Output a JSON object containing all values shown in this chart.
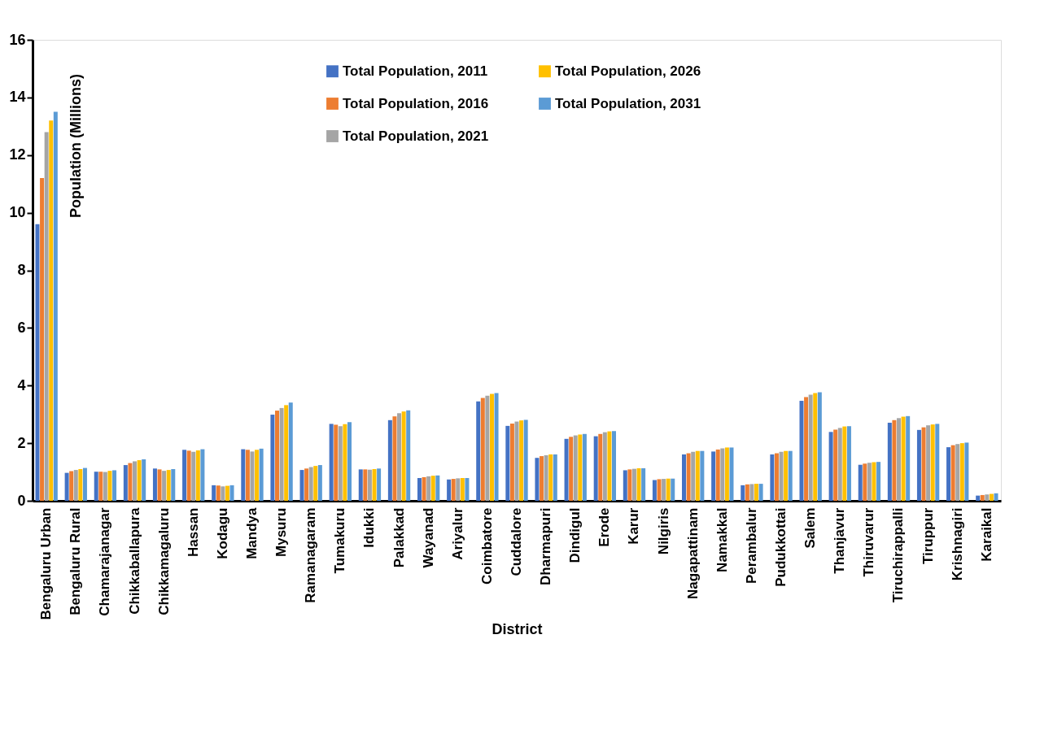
{
  "chart_data": {
    "type": "bar",
    "xlabel": "District",
    "ylabel": "Population (Millions)",
    "categories": [
      "Bengaluru Urban",
      "Bengaluru Rural",
      "Chamarajanagar",
      "Chikkaballapura",
      "Chikkamagaluru",
      "Hassan",
      "Kodagu",
      "Mandya",
      "Mysuru",
      "Ramanagaram",
      "Tumakuru",
      "Idukki",
      "Palakkad",
      "Wayanad",
      "Ariyalur",
      "Coimbatore",
      "Cuddalore",
      "Dharmapuri",
      "Dindigul",
      "Erode",
      "Karur",
      "Nilgiris",
      "Nagapattinam",
      "Namakkal",
      "Perambalur",
      "Pudukkottai",
      "Salem",
      "Thanjavur",
      "Thiruvarur",
      "Tiruchirappalli",
      "Tiruppur",
      "Krishnagiri",
      "Karaikal"
    ],
    "series": [
      {
        "name": "Total Population, 2011",
        "color": "#4472c4",
        "values": [
          9.6,
          0.97,
          1.01,
          1.24,
          1.12,
          1.77,
          0.54,
          1.79,
          2.99,
          1.07,
          2.67,
          1.09,
          2.8,
          0.79,
          0.74,
          3.45,
          2.6,
          1.49,
          2.15,
          2.24,
          1.06,
          0.72,
          1.61,
          1.71,
          0.54,
          1.61,
          3.47,
          2.39,
          1.25,
          2.71,
          2.46,
          1.86,
          0.18
        ]
      },
      {
        "name": "Total Population, 2016",
        "color": "#ed7d31",
        "values": [
          11.2,
          1.03,
          1.01,
          1.31,
          1.09,
          1.74,
          0.53,
          1.77,
          3.13,
          1.12,
          2.64,
          1.09,
          2.93,
          0.82,
          0.76,
          3.57,
          2.68,
          1.55,
          2.22,
          2.32,
          1.09,
          0.75,
          1.65,
          1.78,
          0.57,
          1.65,
          3.6,
          2.47,
          1.29,
          2.8,
          2.55,
          1.93,
          0.2
        ]
      },
      {
        "name": "Total Population, 2021",
        "color": "#a5a5a5",
        "values": [
          12.8,
          1.07,
          1.0,
          1.37,
          1.04,
          1.7,
          0.5,
          1.71,
          3.22,
          1.17,
          2.59,
          1.08,
          3.04,
          0.85,
          0.78,
          3.65,
          2.75,
          1.58,
          2.27,
          2.38,
          1.11,
          0.76,
          1.7,
          1.82,
          0.58,
          1.7,
          3.68,
          2.53,
          1.32,
          2.87,
          2.62,
          1.97,
          0.22
        ]
      },
      {
        "name": "Total Population, 2026",
        "color": "#ffc000",
        "values": [
          13.2,
          1.1,
          1.04,
          1.41,
          1.07,
          1.75,
          0.52,
          1.77,
          3.32,
          1.21,
          2.66,
          1.1,
          3.1,
          0.87,
          0.79,
          3.71,
          2.79,
          1.61,
          2.3,
          2.41,
          1.13,
          0.77,
          1.73,
          1.85,
          0.59,
          1.73,
          3.74,
          2.58,
          1.34,
          2.92,
          2.65,
          2.0,
          0.24
        ]
      },
      {
        "name": "Total Population, 2031",
        "color": "#5b9bd5",
        "values": [
          13.5,
          1.14,
          1.06,
          1.44,
          1.1,
          1.79,
          0.54,
          1.81,
          3.41,
          1.24,
          2.73,
          1.12,
          3.14,
          0.88,
          0.79,
          3.74,
          2.81,
          1.61,
          2.32,
          2.42,
          1.13,
          0.77,
          1.73,
          1.85,
          0.59,
          1.73,
          3.77,
          2.59,
          1.35,
          2.94,
          2.67,
          2.02,
          0.26
        ]
      }
    ],
    "ylim": [
      0,
      16
    ],
    "yticks": [
      0,
      2,
      4,
      6,
      8,
      10,
      12,
      14,
      16
    ],
    "grid": false,
    "legend": "top"
  }
}
